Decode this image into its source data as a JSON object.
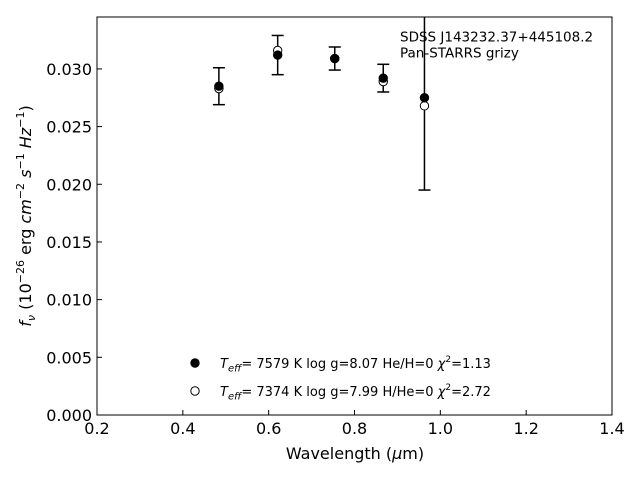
{
  "chart_data": {
    "type": "scatter",
    "title": "",
    "xlabel": "Wavelength (μm)",
    "ylabel": "f_ν (10^-26 erg cm^-2 s^-1 Hz^-1)",
    "xlim": [
      0.2,
      1.4
    ],
    "ylim": [
      0.0,
      0.0345
    ],
    "x_ticks": [
      "0.2",
      "0.4",
      "0.6",
      "0.8",
      "1.0",
      "1.2",
      "1.4"
    ],
    "y_ticks": [
      "0.000",
      "0.005",
      "0.010",
      "0.015",
      "0.020",
      "0.025",
      "0.030"
    ],
    "grid": false,
    "annotations": [
      "SDSS J143232.37+445108.2",
      "Pan-STARRS grizy"
    ],
    "observed": {
      "x": [
        0.484,
        0.621,
        0.754,
        0.867,
        0.963
      ],
      "y": [
        0.0285,
        0.0312,
        0.0309,
        0.0292,
        0.0275
      ],
      "yerr": [
        0.0016,
        0.0017,
        0.001,
        0.0012,
        0.008
      ]
    },
    "series": [
      {
        "marker": "filled-circle",
        "legend": {
          "teff_value": "7579 K",
          "logg": "log g=8.07",
          "comp": "He/H=0",
          "chi_value": "=1.13"
        },
        "x": [
          0.484,
          0.621,
          0.754,
          0.867,
          0.963
        ],
        "y": [
          0.0285,
          0.0312,
          0.0309,
          0.0292,
          0.0275
        ]
      },
      {
        "marker": "open-circle",
        "legend": {
          "teff_value": "7374 K",
          "logg": "log g=7.99",
          "comp": "H/He=0",
          "chi_value": "=2.72"
        },
        "x": [
          0.484,
          0.621,
          0.754,
          0.867,
          0.963
        ],
        "y": [
          0.0283,
          0.0316,
          0.0309,
          0.0289,
          0.0268
        ]
      }
    ]
  }
}
